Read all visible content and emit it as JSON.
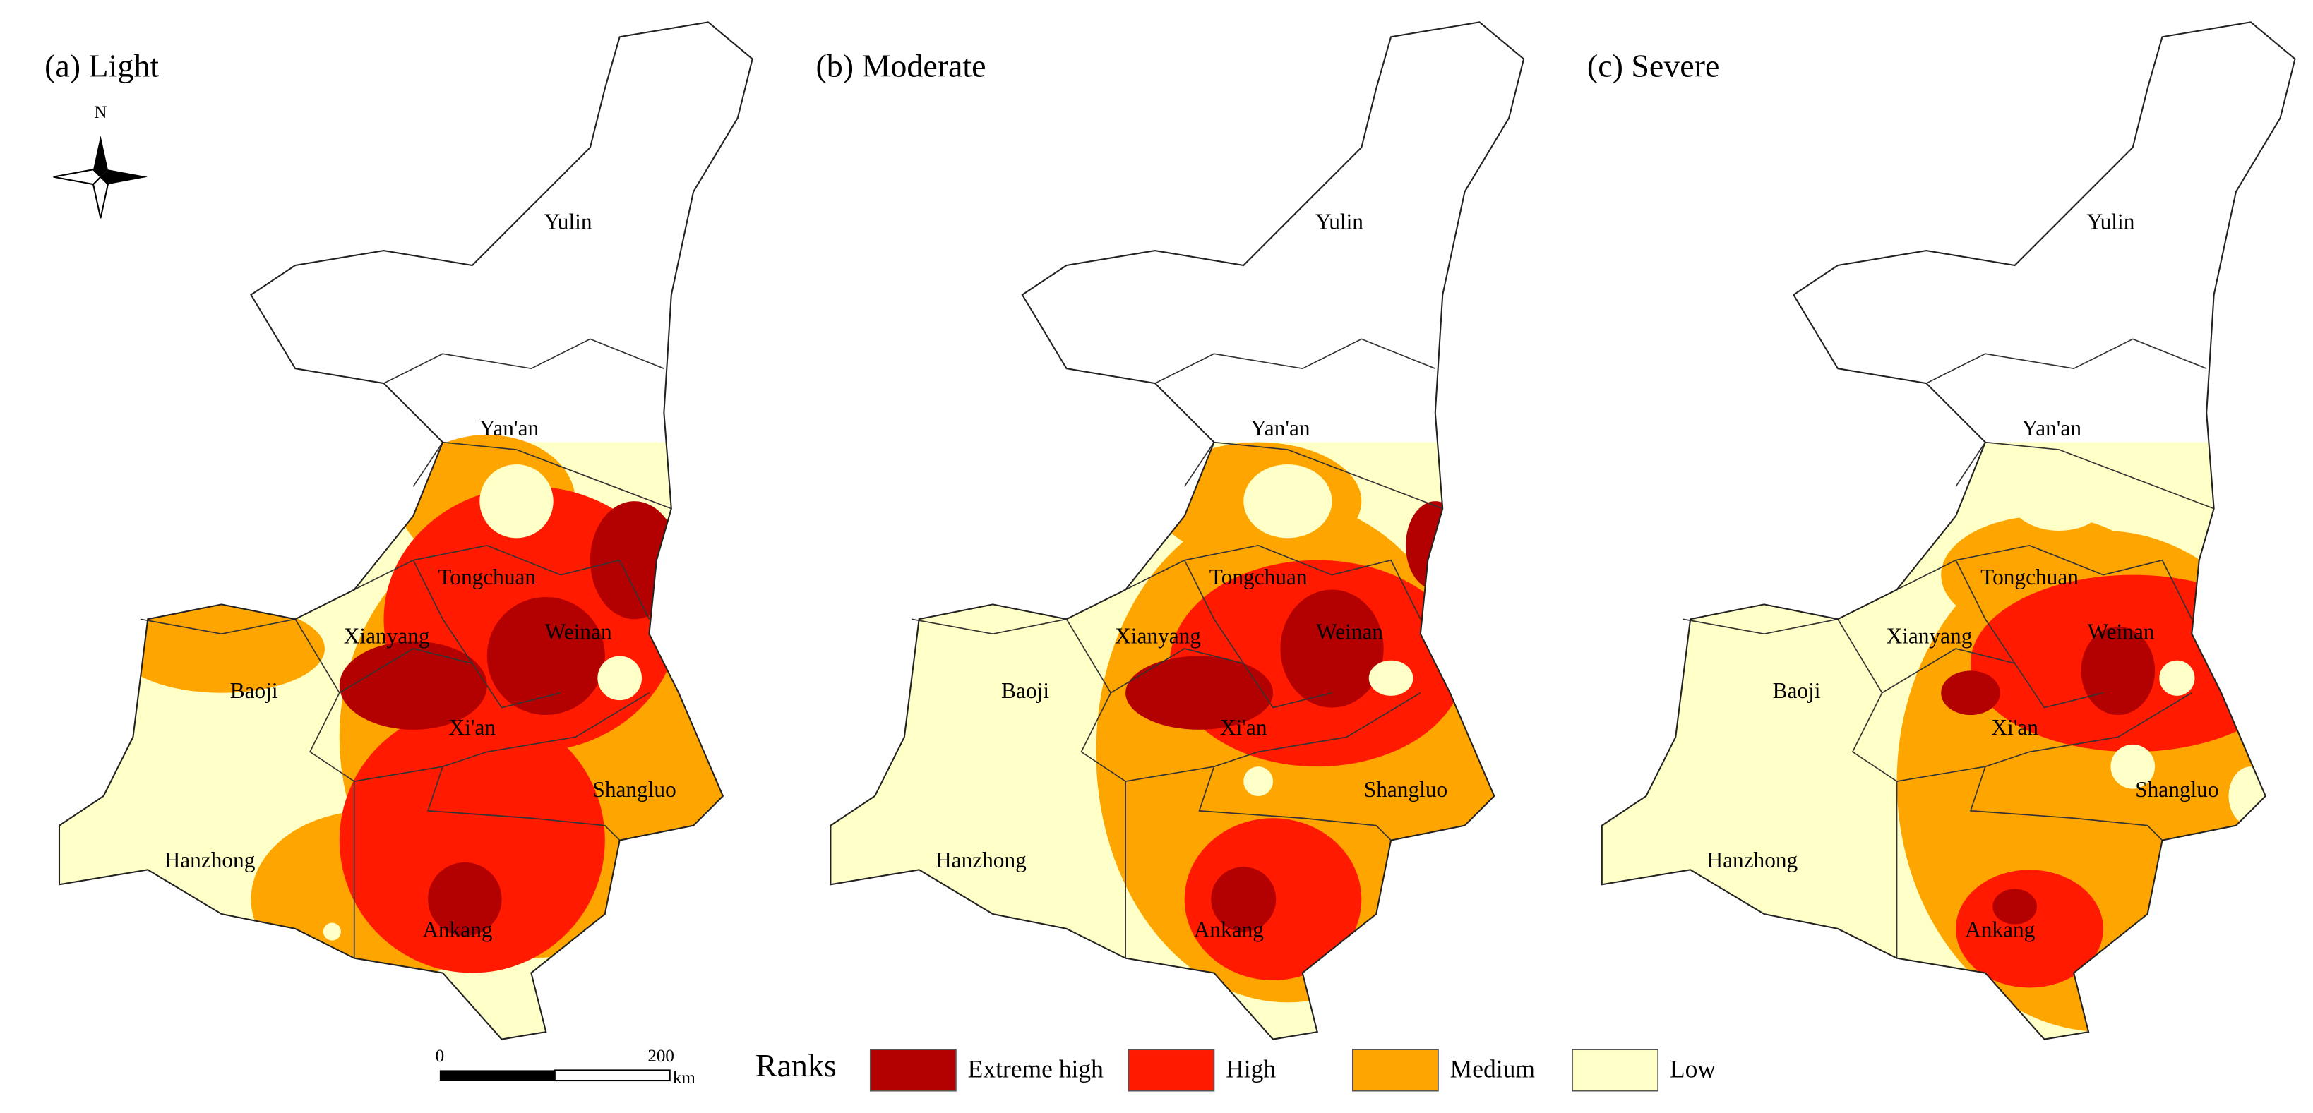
{
  "panels": [
    {
      "title": "(a) Light"
    },
    {
      "title": "(b) Moderate"
    },
    {
      "title": "(c) Severe"
    }
  ],
  "cities": [
    "Yulin",
    "Yan'an",
    "Tongchuan",
    "Xianyang",
    "Weinan",
    "Baoji",
    "Xi'an",
    "Shangluo",
    "Hanzhong",
    "Ankang"
  ],
  "legend": {
    "title": "Ranks",
    "items": [
      {
        "label": "Extreme high",
        "color": "#b30000"
      },
      {
        "label": "High",
        "color": "#ff1a00"
      },
      {
        "label": "Medium",
        "color": "#ffa500"
      },
      {
        "label": "Low",
        "color": "#ffffc8"
      }
    ]
  },
  "scale_bar": {
    "start": "0",
    "end": "200",
    "unit": "km"
  },
  "north": "N"
}
